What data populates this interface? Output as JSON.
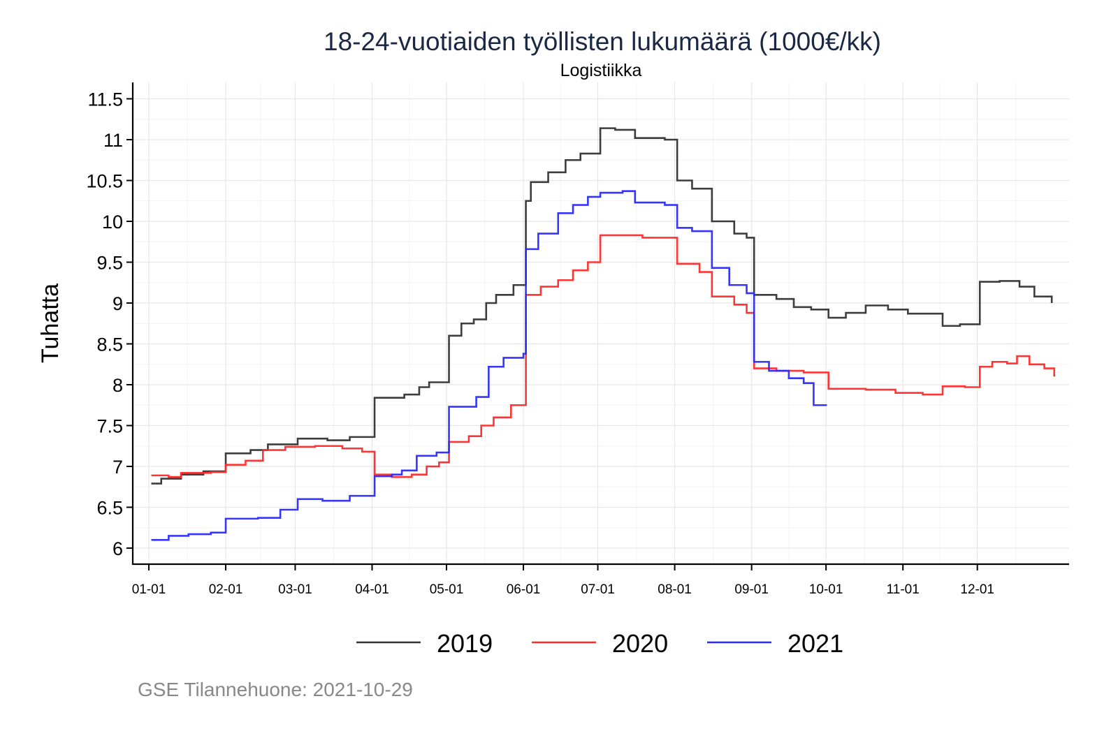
{
  "chart_data": {
    "type": "line",
    "title": "18-24-vuotiaiden työllisten lukumäärä (1000€/kk)",
    "subtitle": "Logistiikka",
    "xlabel": "",
    "ylabel": "Tuhatta",
    "x_unit": "day of year",
    "xlim": [
      -6.5,
      371
    ],
    "ylim": [
      5.8,
      11.7
    ],
    "grid": true,
    "legend_position": "bottom",
    "x_ticks": [
      {
        "day": 0,
        "label": "01-01"
      },
      {
        "day": 31,
        "label": "02-01"
      },
      {
        "day": 59,
        "label": "03-01"
      },
      {
        "day": 90,
        "label": "04-01"
      },
      {
        "day": 120,
        "label": "05-01"
      },
      {
        "day": 151,
        "label": "06-01"
      },
      {
        "day": 181,
        "label": "07-01"
      },
      {
        "day": 212,
        "label": "08-01"
      },
      {
        "day": 243,
        "label": "09-01"
      },
      {
        "day": 273,
        "label": "10-01"
      },
      {
        "day": 304,
        "label": "11-01"
      },
      {
        "day": 334,
        "label": "12-01"
      }
    ],
    "y_ticks": [
      {
        "value": 6,
        "label": "6"
      },
      {
        "value": 6.5,
        "label": "6.5"
      },
      {
        "value": 7,
        "label": "7"
      },
      {
        "value": 7.5,
        "label": "7.5"
      },
      {
        "value": 8,
        "label": "8"
      },
      {
        "value": 8.5,
        "label": "8.5"
      },
      {
        "value": 9,
        "label": "9"
      },
      {
        "value": 9.5,
        "label": "9.5"
      },
      {
        "value": 10,
        "label": "10"
      },
      {
        "value": 10.5,
        "label": "10.5"
      },
      {
        "value": 11,
        "label": "11"
      },
      {
        "value": 11.5,
        "label": "11.5"
      }
    ],
    "series": [
      {
        "name": "2019",
        "color": "#333333",
        "points": [
          [
            1,
            6.79
          ],
          [
            5,
            6.85
          ],
          [
            13,
            6.9
          ],
          [
            22,
            6.94
          ],
          [
            31,
            7.16
          ],
          [
            41,
            7.2
          ],
          [
            48,
            7.27
          ],
          [
            60,
            7.34
          ],
          [
            72,
            7.32
          ],
          [
            81,
            7.36
          ],
          [
            91,
            7.84
          ],
          [
            103,
            7.88
          ],
          [
            109,
            7.97
          ],
          [
            113,
            8.03
          ],
          [
            121,
            8.6
          ],
          [
            126,
            8.75
          ],
          [
            131,
            8.8
          ],
          [
            136,
            9.0
          ],
          [
            140,
            9.1
          ],
          [
            147,
            9.22
          ],
          [
            152,
            10.25
          ],
          [
            154,
            10.48
          ],
          [
            161,
            10.6
          ],
          [
            168,
            10.75
          ],
          [
            174,
            10.83
          ],
          [
            182,
            11.14
          ],
          [
            188,
            11.12
          ],
          [
            196,
            11.02
          ],
          [
            208,
            11.0
          ],
          [
            213,
            10.5
          ],
          [
            219,
            10.4
          ],
          [
            227,
            10.0
          ],
          [
            236,
            9.85
          ],
          [
            241,
            9.8
          ],
          [
            244,
            9.1
          ],
          [
            253,
            9.05
          ],
          [
            260,
            8.95
          ],
          [
            267,
            8.92
          ],
          [
            274,
            8.82
          ],
          [
            281,
            8.88
          ],
          [
            289,
            8.97
          ],
          [
            298,
            8.92
          ],
          [
            306,
            8.87
          ],
          [
            320,
            8.72
          ],
          [
            327,
            8.74
          ],
          [
            335,
            9.26
          ],
          [
            343,
            9.27
          ],
          [
            351,
            9.2
          ],
          [
            357,
            9.08
          ],
          [
            364,
            9.0
          ]
        ]
      },
      {
        "name": "2020",
        "color": "#ff2a2a",
        "points": [
          [
            1,
            6.89
          ],
          [
            8,
            6.87
          ],
          [
            13,
            6.92
          ],
          [
            25,
            6.93
          ],
          [
            31,
            7.02
          ],
          [
            39,
            7.07
          ],
          [
            46,
            7.2
          ],
          [
            55,
            7.24
          ],
          [
            67,
            7.25
          ],
          [
            78,
            7.22
          ],
          [
            86,
            7.18
          ],
          [
            91,
            6.9
          ],
          [
            98,
            6.87
          ],
          [
            106,
            6.9
          ],
          [
            112,
            7.0
          ],
          [
            117,
            7.05
          ],
          [
            121,
            7.3
          ],
          [
            129,
            7.37
          ],
          [
            134,
            7.5
          ],
          [
            139,
            7.6
          ],
          [
            146,
            7.75
          ],
          [
            152,
            9.1
          ],
          [
            158,
            9.2
          ],
          [
            165,
            9.28
          ],
          [
            171,
            9.4
          ],
          [
            177,
            9.5
          ],
          [
            182,
            9.83
          ],
          [
            191,
            9.83
          ],
          [
            199,
            9.8
          ],
          [
            208,
            9.8
          ],
          [
            213,
            9.48
          ],
          [
            222,
            9.38
          ],
          [
            227,
            9.08
          ],
          [
            236,
            8.98
          ],
          [
            241,
            8.88
          ],
          [
            244,
            8.2
          ],
          [
            253,
            8.17
          ],
          [
            264,
            8.15
          ],
          [
            274,
            7.95
          ],
          [
            289,
            7.94
          ],
          [
            301,
            7.9
          ],
          [
            312,
            7.88
          ],
          [
            320,
            7.98
          ],
          [
            329,
            7.97
          ],
          [
            335,
            8.22
          ],
          [
            340,
            8.28
          ],
          [
            346,
            8.26
          ],
          [
            350,
            8.35
          ],
          [
            355,
            8.25
          ],
          [
            361,
            8.2
          ],
          [
            365,
            8.1
          ]
        ]
      },
      {
        "name": "2021",
        "color": "#2a2aff",
        "points": [
          [
            1,
            6.1
          ],
          [
            8,
            6.15
          ],
          [
            16,
            6.17
          ],
          [
            25,
            6.19
          ],
          [
            31,
            6.36
          ],
          [
            44,
            6.37
          ],
          [
            53,
            6.47
          ],
          [
            60,
            6.6
          ],
          [
            70,
            6.58
          ],
          [
            81,
            6.64
          ],
          [
            91,
            6.88
          ],
          [
            98,
            6.9
          ],
          [
            102,
            6.95
          ],
          [
            108,
            7.13
          ],
          [
            116,
            7.17
          ],
          [
            121,
            7.73
          ],
          [
            132,
            7.85
          ],
          [
            137,
            8.22
          ],
          [
            143,
            8.33
          ],
          [
            151,
            8.38
          ],
          [
            152,
            9.66
          ],
          [
            157,
            9.85
          ],
          [
            165,
            10.1
          ],
          [
            171,
            10.2
          ],
          [
            177,
            10.3
          ],
          [
            182,
            10.35
          ],
          [
            191,
            10.37
          ],
          [
            196,
            10.23
          ],
          [
            208,
            10.2
          ],
          [
            213,
            9.92
          ],
          [
            219,
            9.88
          ],
          [
            227,
            9.43
          ],
          [
            234,
            9.22
          ],
          [
            241,
            9.12
          ],
          [
            244,
            8.28
          ],
          [
            250,
            8.17
          ],
          [
            258,
            8.08
          ],
          [
            264,
            8.02
          ],
          [
            268,
            7.75
          ],
          [
            273,
            7.74
          ]
        ]
      }
    ]
  },
  "caption": "GSE Tilannehuone: 2021-10-29"
}
